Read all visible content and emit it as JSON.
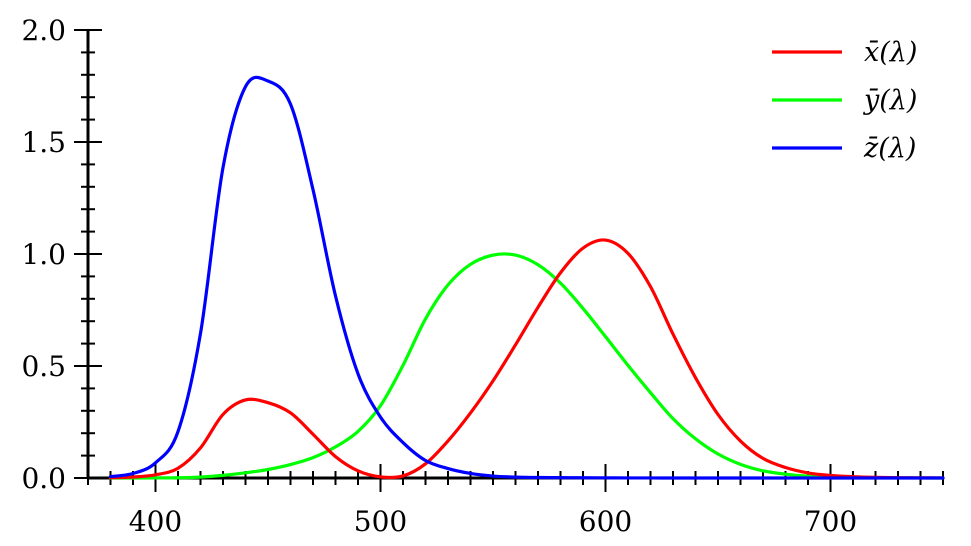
{
  "chart_data": {
    "type": "line",
    "title": "",
    "xlabel": "",
    "ylabel": "",
    "xlim": [
      370,
      750
    ],
    "ylim": [
      0,
      2
    ],
    "x_ticks": [
      400,
      500,
      600,
      700
    ],
    "x_tick_labels": [
      "400",
      "500",
      "600",
      "700"
    ],
    "x_minor_step": 10,
    "y_ticks": [
      0,
      0.5,
      1.0,
      1.5,
      2.0
    ],
    "y_tick_labels": [
      "0.0",
      "0.5",
      "1.0",
      "1.5",
      "2.0"
    ],
    "y_minor_step": 0.1,
    "grid": false,
    "legend_position": "top-right",
    "series": [
      {
        "name": "x̄(λ)",
        "color": "#ff0000",
        "x": [
          380,
          390,
          400,
          410,
          420,
          430,
          440,
          450,
          460,
          470,
          480,
          490,
          500,
          510,
          520,
          530,
          540,
          550,
          560,
          570,
          580,
          590,
          600,
          610,
          620,
          630,
          640,
          650,
          660,
          670,
          680,
          690,
          700,
          710,
          720,
          730,
          740,
          750
        ],
        "y": [
          0.0014,
          0.0042,
          0.0143,
          0.0435,
          0.1344,
          0.2839,
          0.3483,
          0.3362,
          0.2908,
          0.1954,
          0.0956,
          0.032,
          0.0049,
          0.0093,
          0.0633,
          0.1655,
          0.2904,
          0.4334,
          0.5945,
          0.7621,
          0.9163,
          1.0263,
          1.0622,
          1.0026,
          0.8544,
          0.6424,
          0.4479,
          0.2835,
          0.1649,
          0.0874,
          0.0468,
          0.0227,
          0.0114,
          0.0058,
          0.0029,
          0.0014,
          0.0007,
          0.0003
        ]
      },
      {
        "name": "ȳ(λ)",
        "color": "#00ff00",
        "x": [
          380,
          390,
          400,
          410,
          420,
          430,
          440,
          450,
          460,
          470,
          480,
          490,
          500,
          510,
          520,
          530,
          540,
          550,
          560,
          570,
          580,
          590,
          600,
          610,
          620,
          630,
          640,
          650,
          660,
          670,
          680,
          690,
          700,
          710,
          720,
          730,
          740,
          750
        ],
        "y": [
          0.0,
          0.0001,
          0.0004,
          0.0012,
          0.004,
          0.0116,
          0.023,
          0.038,
          0.06,
          0.091,
          0.139,
          0.208,
          0.323,
          0.503,
          0.71,
          0.862,
          0.954,
          0.995,
          0.995,
          0.952,
          0.87,
          0.757,
          0.631,
          0.503,
          0.381,
          0.265,
          0.175,
          0.107,
          0.061,
          0.032,
          0.017,
          0.0082,
          0.0041,
          0.0021,
          0.001,
          0.0005,
          0.0002,
          0.0001
        ]
      },
      {
        "name": "z̄(λ)",
        "color": "#0000ff",
        "x": [
          380,
          390,
          400,
          410,
          420,
          430,
          440,
          450,
          460,
          470,
          480,
          490,
          500,
          510,
          520,
          530,
          540,
          550,
          560,
          570,
          580,
          590,
          600,
          610,
          620,
          630,
          640,
          650,
          660,
          670,
          680,
          690,
          700,
          710,
          720,
          730,
          740,
          750
        ],
        "y": [
          0.0065,
          0.0201,
          0.0679,
          0.2074,
          0.6456,
          1.3856,
          1.7471,
          1.7721,
          1.6692,
          1.2876,
          0.813,
          0.4652,
          0.272,
          0.1582,
          0.0782,
          0.0422,
          0.0203,
          0.0087,
          0.0039,
          0.0021,
          0.0017,
          0.0011,
          0.0008,
          0.0003,
          0.0002,
          0.0,
          0.0,
          0.0,
          0.0,
          0.0,
          0.0,
          0.0,
          0.0,
          0.0,
          0.0,
          0.0,
          0.0,
          0.0
        ]
      }
    ]
  }
}
